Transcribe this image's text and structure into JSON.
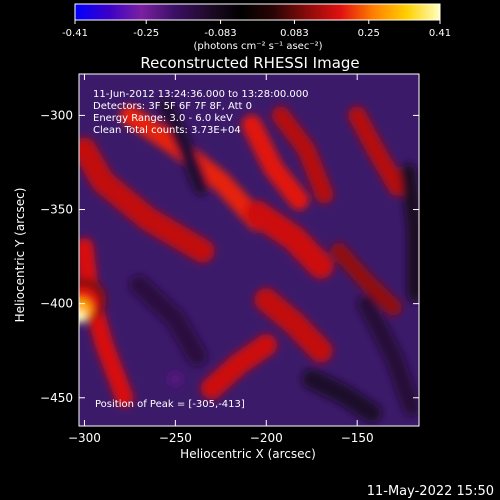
{
  "colorbar": {
    "ticks": [
      "-0.41",
      "-0.25",
      "-0.083",
      "0.083",
      "0.25",
      "0.41"
    ],
    "tick_values": [
      -0.41,
      -0.25,
      -0.083,
      0.083,
      0.25,
      0.41
    ],
    "range": [
      -0.41,
      0.41
    ],
    "unit_label": "(photons cm⁻² s⁻¹ asec⁻²)",
    "colors": [
      "#0000ff",
      "#3a00c8",
      "#7a20a0",
      "#3b1066",
      "#200a2a",
      "#000000",
      "#2a0505",
      "#8a0a0a",
      "#e01010",
      "#ff8000",
      "#ffd000",
      "#ffffc0"
    ]
  },
  "chart_data": {
    "type": "heatmap",
    "title": "Reconstructed RHESSI Image",
    "xlabel": "Heliocentric X (arcsec)",
    "ylabel": "Heliocentric Y (arcsec)",
    "xlim": [
      -303,
      -116
    ],
    "ylim": [
      -465,
      -278
    ],
    "xticks": [
      -300,
      -250,
      -200,
      -150
    ],
    "yticks": [
      -300,
      -350,
      -400,
      -450
    ],
    "xtick_labels": [
      "−300",
      "−250",
      "−200",
      "−150"
    ],
    "ytick_labels": [
      "−300",
      "−350",
      "−400",
      "−450"
    ],
    "annotations": [
      "11-Jun-2012 13:24:36.000 to 13:28:00.000",
      "Detectors: 3F 5F 6F 7F 8F, Att 0",
      "Energy Range: 3.0 - 6.0 keV",
      "Clean     Total counts: 3.73E+04"
    ],
    "peak_label": "Position of Peak = [-305,-413]",
    "peak": [
      -305,
      -413
    ],
    "features": [
      {
        "x": [
          -300,
          -290,
          -265,
          -235
        ],
        "y": [
          -318,
          -335,
          -355,
          -372
        ],
        "value": 0.16,
        "width": 13
      },
      {
        "x": [
          -275,
          -250,
          -225,
          -205
        ],
        "y": [
          -300,
          -316,
          -335,
          -356
        ],
        "value": 0.2,
        "width": 11
      },
      {
        "x": [
          -300,
          -297,
          -289,
          -278
        ],
        "y": [
          -370,
          -395,
          -422,
          -450
        ],
        "value": 0.18,
        "width": 10
      },
      {
        "x": [
          -230,
          -215,
          -200
        ],
        "y": [
          -445,
          -432,
          -422
        ],
        "value": 0.17,
        "width": 12
      },
      {
        "x": [
          -208,
          -196,
          -182
        ],
        "y": [
          -305,
          -328,
          -345
        ],
        "value": 0.19,
        "width": 11
      },
      {
        "x": [
          -192,
          -178,
          -168
        ],
        "y": [
          -300,
          -318,
          -342
        ],
        "value": 0.15,
        "width": 10
      },
      {
        "x": [
          -205,
          -185,
          -170
        ],
        "y": [
          -352,
          -365,
          -380
        ],
        "value": 0.17,
        "width": 14
      },
      {
        "x": [
          -200,
          -185,
          -170
        ],
        "y": [
          -398,
          -410,
          -425
        ],
        "value": 0.16,
        "width": 13
      },
      {
        "x": [
          -150,
          -140,
          -128
        ],
        "y": [
          -300,
          -318,
          -338
        ],
        "value": 0.15,
        "width": 10
      },
      {
        "x": [
          -160,
          -145,
          -130
        ],
        "y": [
          -372,
          -388,
          -402
        ],
        "value": 0.12,
        "width": 9
      },
      {
        "x": [
          -255,
          -245,
          -236
        ],
        "y": [
          -295,
          -316,
          -338
        ],
        "value": -0.12,
        "width": 9
      },
      {
        "x": [
          -270,
          -250,
          -238
        ],
        "y": [
          -390,
          -408,
          -428
        ],
        "value": -0.14,
        "width": 11
      },
      {
        "x": [
          -175,
          -158,
          -142
        ],
        "y": [
          -440,
          -448,
          -458
        ],
        "value": -0.11,
        "width": 11
      },
      {
        "x": [
          -145,
          -130,
          -120
        ],
        "y": [
          -400,
          -428,
          -455
        ],
        "value": -0.13,
        "width": 10
      },
      {
        "x": [
          -122,
          -118,
          -118
        ],
        "y": [
          -330,
          -360,
          -395
        ],
        "value": -0.1,
        "width": 9
      }
    ],
    "blobs": [
      {
        "x": -303,
        "y": -407,
        "value": 0.41,
        "r": 3.5
      },
      {
        "x": -302,
        "y": -403,
        "value": 0.3,
        "r": 6
      },
      {
        "x": -301,
        "y": -400,
        "value": 0.19,
        "r": 9
      },
      {
        "x": -300,
        "y": -398,
        "value": 0.11,
        "r": 12
      },
      {
        "x": -250,
        "y": -440,
        "value": -0.22,
        "r": 4
      }
    ],
    "timestamp": "11-May-2022 15:50"
  }
}
